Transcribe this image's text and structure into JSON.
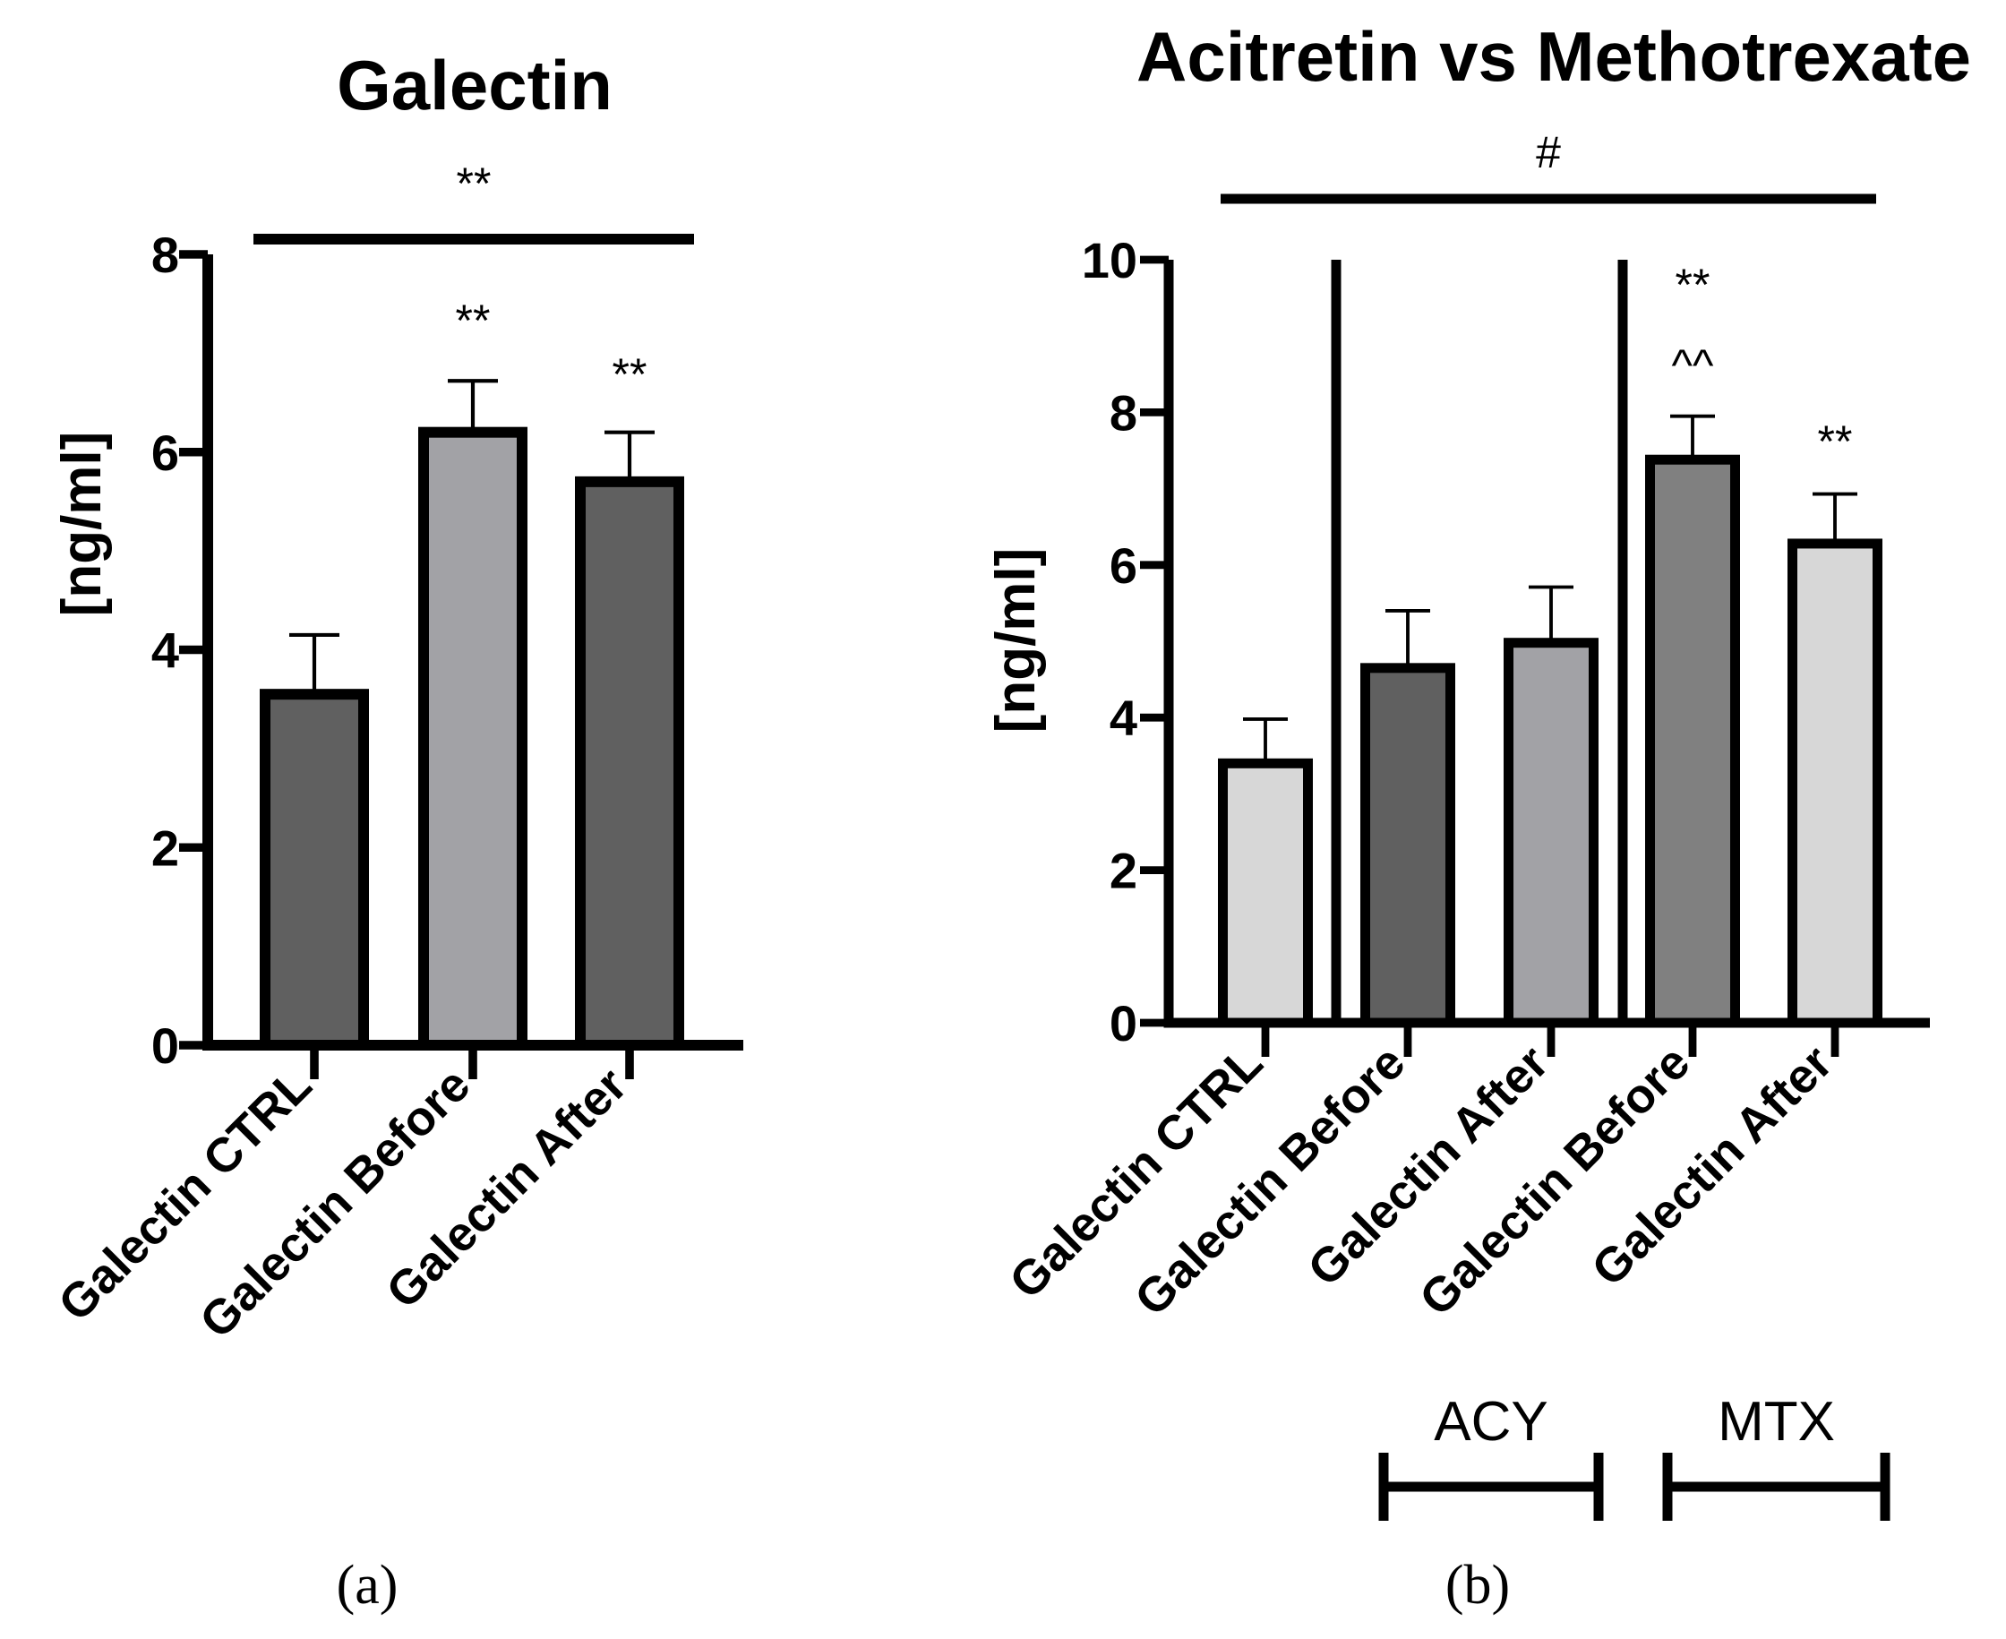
{
  "chart_data": [
    {
      "type": "bar",
      "title": "Galectin",
      "ylabel": "[ng/ml]",
      "xlabel": "",
      "ylim": [
        0,
        8
      ],
      "yticks": [
        "0",
        "2",
        "4",
        "6",
        "8"
      ],
      "categories": [
        "Galectin CTRL",
        "Galectin Before",
        "Galectin After"
      ],
      "values": [
        3.55,
        6.2,
        5.7
      ],
      "errors": [
        0.6,
        0.52,
        0.5
      ],
      "colors": [
        "#606060",
        "#a2a2a6",
        "#606060"
      ],
      "bar_annotations": [
        "",
        "**",
        "**"
      ],
      "bracket_label": "**",
      "panel_label": "(a)"
    },
    {
      "type": "bar",
      "title": "Acitretin vs Methotrexate",
      "ylabel": "[ng/ml]",
      "xlabel": "",
      "ylim": [
        0,
        10
      ],
      "yticks": [
        "0",
        "2",
        "4",
        "6",
        "8",
        "10"
      ],
      "categories": [
        "Galectin CTRL",
        "Galectin Before",
        "Galectin After",
        "Galectin Before",
        "Galectin After"
      ],
      "values": [
        3.4,
        4.65,
        4.98,
        7.38,
        6.28
      ],
      "errors": [
        0.58,
        0.75,
        0.73,
        0.57,
        0.65
      ],
      "colors": [
        "#d7d7d7",
        "#606060",
        "#a2a2a6",
        "#808080",
        "#d7d7d7"
      ],
      "bar_annotations": [
        "",
        "",
        "",
        "**",
        "**"
      ],
      "bar_annotations_2": [
        "",
        "",
        "",
        "^^",
        ""
      ],
      "bracket_label": "#",
      "groups": [
        "ACY",
        "MTX"
      ],
      "panel_label": "(b)"
    }
  ]
}
